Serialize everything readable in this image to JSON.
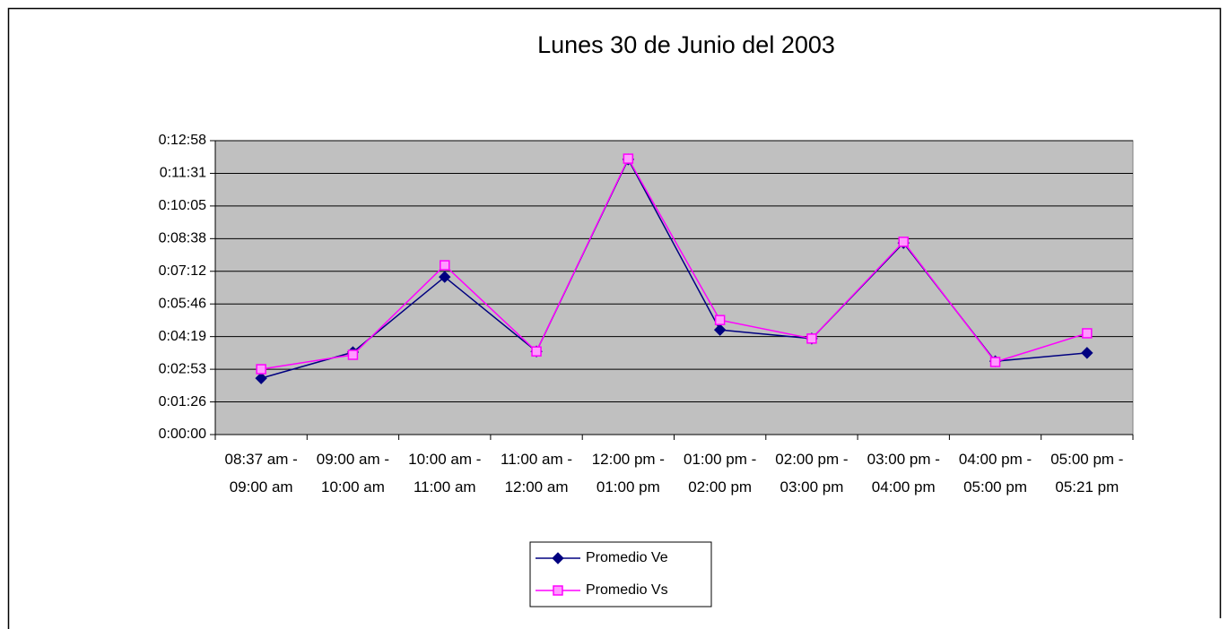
{
  "chart_data": {
    "type": "line",
    "title": "Lunes 30 de Junio del 2003",
    "categories": [
      "08:37 am - 09:00 am",
      "09:00 am - 10:00 am",
      "10:00 am - 11:00 am",
      "11:00 am - 12:00 am",
      "12:00 pm - 01:00 pm",
      "01:00 pm - 02:00 pm",
      "02:00 pm - 03:00 pm",
      "03:00 pm - 04:00 pm",
      "04:00 pm - 05:00 pm",
      "05:00 pm - 05:21 pm"
    ],
    "series": [
      {
        "name": "Promedio Ve",
        "color": "#000080",
        "marker": "diamond",
        "values": [
          149,
          218,
          417,
          220,
          728,
          277,
          254,
          507,
          194,
          216
        ]
      },
      {
        "name": "Promedio Vs",
        "color": "#ff00ff",
        "marker": "square",
        "values": [
          173,
          211,
          448,
          220,
          730,
          303,
          254,
          510,
          192,
          268
        ]
      }
    ],
    "ylim": [
      0,
      777.6
    ],
    "yticks": [
      {
        "value": 0,
        "label": "0:00:00"
      },
      {
        "value": 86.4,
        "label": "0:01:26"
      },
      {
        "value": 172.8,
        "label": "0:02:53"
      },
      {
        "value": 259.2,
        "label": "0:04:19"
      },
      {
        "value": 345.6,
        "label": "0:05:46"
      },
      {
        "value": 432,
        "label": "0:07:12"
      },
      {
        "value": 518.4,
        "label": "0:08:38"
      },
      {
        "value": 604.8,
        "label": "0:10:05"
      },
      {
        "value": 691.2,
        "label": "0:11:31"
      },
      {
        "value": 777.6,
        "label": "0:12:58"
      }
    ],
    "grid": true,
    "legend": "bottom",
    "plot_background": "#c0c0c0"
  }
}
